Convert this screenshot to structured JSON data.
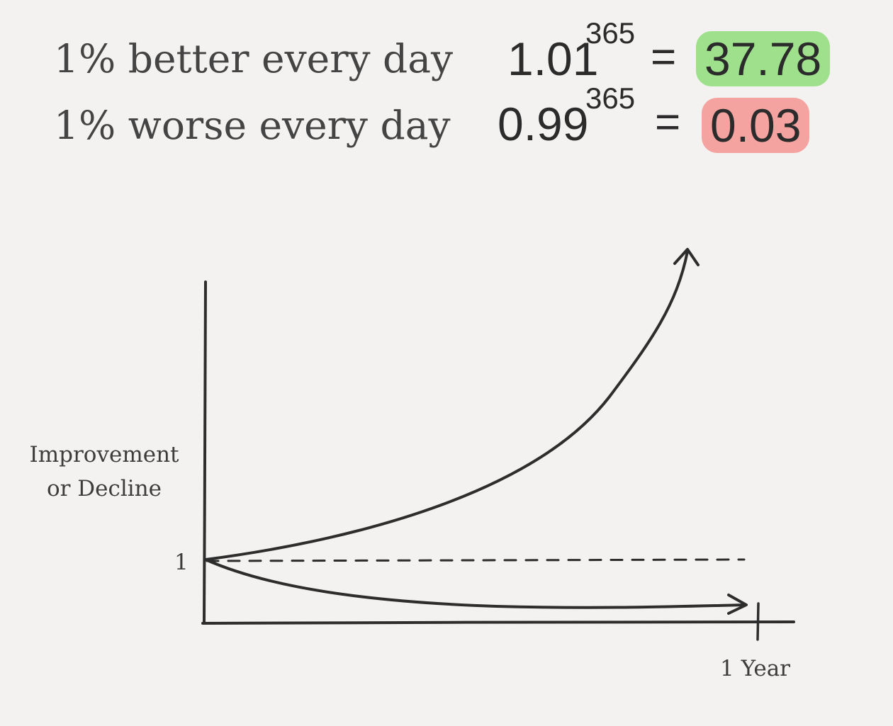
{
  "rows": [
    {
      "label": "1% better every day",
      "base": "1.01",
      "exponent": "365",
      "equals": "=",
      "result": "37.78",
      "color": "#9fe08c"
    },
    {
      "label": "1% worse every day",
      "base": "0.99",
      "exponent": "365",
      "equals": "=",
      "result": "0.03",
      "color": "#f5a3a0"
    }
  ],
  "diagram": {
    "ylabel_line1": "Improvement",
    "ylabel_line2": "or Decline",
    "y_tick": "1",
    "x_tick": "1 Year",
    "line_color": "#2d2d2d"
  }
}
